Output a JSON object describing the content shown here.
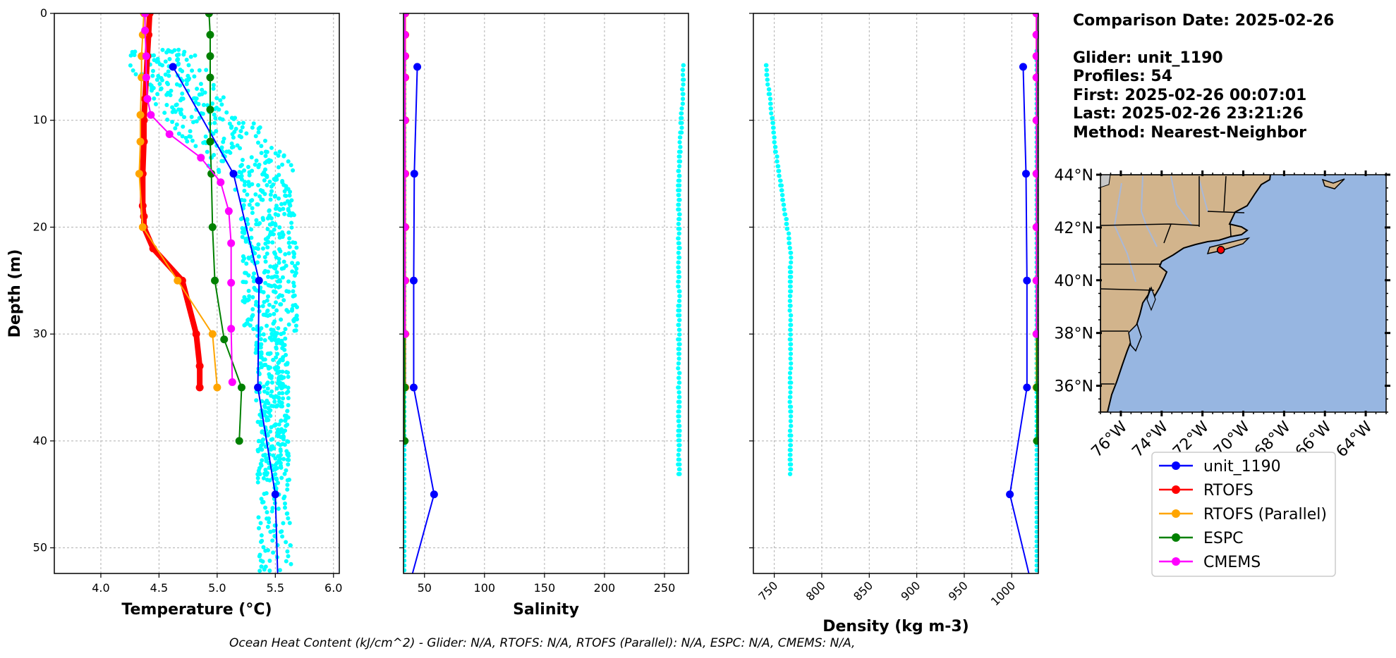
{
  "info": {
    "comparison_date": "Comparison Date: 2025-02-26",
    "glider": "Glider: unit_1190",
    "profiles": "Profiles: 54",
    "first": "First: 2025-02-26 00:07:01",
    "last": "Last: 2025-02-26 23:21:26",
    "method": "Method: Nearest-Neighbor"
  },
  "footer_text": "Ocean Heat Content (kJ/cm^2) - Glider: N/A,  RTOFS: N/A,  RTOFS (Parallel): N/A,  ESPC: N/A,  CMEMS: N/A,",
  "colors": {
    "unit_1190": "#0000ff",
    "RTOFS": "#ff0000",
    "RTOFS (Parallel)": "#ffa500",
    "ESPC": "#008000",
    "CMEMS": "#ff00ff",
    "glider_points": "#00ffff",
    "land": "#d2b48c",
    "ocean": "#97b6e1"
  },
  "legend": [
    "unit_1190",
    "RTOFS",
    "RTOFS (Parallel)",
    "ESPC",
    "CMEMS"
  ],
  "chart_data": [
    {
      "type": "line",
      "xlabel": "Temperature (°C)",
      "ylabel": "Depth (m)",
      "xlim": [
        3.6,
        6.05
      ],
      "ylim": [
        52.4,
        0
      ],
      "xticks": [
        "4.0",
        "4.5",
        "5.0",
        "5.5",
        "6.0"
      ],
      "xtick_values": [
        4.0,
        4.5,
        5.0,
        5.5,
        6.0
      ],
      "yticks": [
        "0",
        "10",
        "20",
        "30",
        "40",
        "50"
      ],
      "ytick_values": [
        0,
        10,
        20,
        30,
        40,
        50
      ],
      "grid": true,
      "series": [
        {
          "name": "unit_1190",
          "x": [
            4.62,
            5.14,
            5.36,
            5.35,
            5.5,
            5.52
          ],
          "y": [
            5,
            15,
            25,
            35,
            45,
            52.4
          ]
        },
        {
          "name": "RTOFS",
          "x": [
            4.42,
            4.41,
            4.4,
            4.39,
            4.38,
            4.37,
            4.37,
            4.36,
            4.36,
            4.37,
            4.37,
            4.45,
            4.7,
            4.82,
            4.85,
            4.85
          ],
          "y": [
            0,
            2,
            4,
            6,
            8,
            10,
            12,
            15,
            18,
            19,
            20,
            22,
            25,
            30,
            33,
            35
          ]
        },
        {
          "name": "RTOFS (Parallel)",
          "x": [
            4.37,
            4.36,
            4.35,
            4.35,
            4.34,
            4.34,
            4.33,
            4.36,
            4.66,
            4.96,
            5.0
          ],
          "y": [
            0,
            2,
            4,
            6,
            9.5,
            12,
            15,
            20,
            25,
            30,
            35
          ]
        },
        {
          "name": "ESPC",
          "x": [
            4.93,
            4.94,
            4.94,
            4.94,
            4.94,
            4.94,
            4.95,
            4.96,
            4.98,
            5.06,
            5.21,
            5.19
          ],
          "y": [
            0,
            2,
            4,
            6,
            9,
            12,
            15,
            20,
            25,
            30.5,
            35,
            40
          ]
        },
        {
          "name": "CMEMS",
          "x": [
            4.38,
            4.38,
            4.39,
            4.39,
            4.4,
            4.43,
            4.59,
            4.86,
            5.03,
            5.1,
            5.12,
            5.12,
            5.12,
            5.13
          ],
          "y": [
            0,
            1.6,
            4,
            6,
            8,
            9.5,
            11.3,
            13.5,
            15.8,
            18.5,
            21.5,
            25.2,
            29.5,
            34.5
          ]
        }
      ]
    },
    {
      "type": "line",
      "xlabel": "Salinity",
      "ylabel": "",
      "xlim": [
        32.5,
        270
      ],
      "ylim": [
        52.4,
        0
      ],
      "xticks": [
        "50",
        "100",
        "150",
        "200",
        "250"
      ],
      "xtick_values": [
        50,
        100,
        150,
        200,
        250
      ],
      "yticks": [
        "",
        "",
        "",
        "",
        "",
        ""
      ],
      "ytick_values": [
        0,
        10,
        20,
        30,
        40,
        50
      ],
      "grid": true,
      "series": [
        {
          "name": "unit_1190",
          "x": [
            44.0,
            41.5,
            41.0,
            41.0,
            58.0,
            40.0
          ],
          "y": [
            5,
            15,
            25,
            35,
            45,
            52.4
          ]
        },
        {
          "name": "RTOFS",
          "x": [
            34,
            34,
            34,
            34,
            34,
            34,
            34,
            34,
            34,
            34
          ],
          "y": [
            0,
            2,
            4,
            6,
            10,
            15,
            20,
            25,
            30,
            35
          ]
        },
        {
          "name": "RTOFS (Parallel)",
          "x": [
            33.8,
            33.8,
            33.8,
            33.8,
            33.8,
            33.8,
            33.8,
            33.8,
            33.8,
            33.8
          ],
          "y": [
            0,
            2,
            4,
            6,
            10,
            15,
            20,
            25,
            30,
            35
          ]
        },
        {
          "name": "ESPC",
          "x": [
            33.5,
            33.5,
            33.5,
            33.5,
            33.5,
            33.5,
            33.5,
            33.5,
            33.5,
            33.5,
            33.5
          ],
          "y": [
            0,
            2,
            4,
            6,
            10,
            15,
            20,
            25,
            30,
            35,
            40
          ]
        },
        {
          "name": "CMEMS",
          "x": [
            33.7,
            33.7,
            33.7,
            33.7,
            33.7,
            33.7,
            33.7,
            33.7,
            33.7
          ],
          "y": [
            0,
            2,
            4,
            6,
            10,
            15,
            20,
            25,
            30
          ]
        }
      ]
    },
    {
      "type": "line",
      "xlabel": "Density (kg m-3)",
      "ylabel": "",
      "xlim": [
        728,
        1028
      ],
      "ylim": [
        52.4,
        0
      ],
      "xticks": [
        "750",
        "800",
        "850",
        "900",
        "950",
        "1000"
      ],
      "xtick_values": [
        750,
        800,
        850,
        900,
        950,
        1000
      ],
      "yticks": [
        "",
        "",
        "",
        "",
        "",
        ""
      ],
      "ytick_values": [
        0,
        10,
        20,
        30,
        40,
        50
      ],
      "grid": true,
      "series": [
        {
          "name": "unit_1190",
          "x": [
            1012,
            1015,
            1016,
            1016,
            998,
            1018
          ],
          "y": [
            5,
            15,
            25,
            35,
            45,
            52.4
          ]
        },
        {
          "name": "RTOFS",
          "x": [
            1026,
            1026,
            1026,
            1026,
            1026,
            1026,
            1026,
            1026,
            1026,
            1026
          ],
          "y": [
            0,
            2,
            4,
            6,
            10,
            15,
            20,
            25,
            30,
            35
          ]
        },
        {
          "name": "RTOFS (Parallel)",
          "x": [
            1026,
            1026,
            1026,
            1026,
            1026,
            1026,
            1026,
            1026,
            1026,
            1026
          ],
          "y": [
            0,
            2,
            4,
            6,
            10,
            15,
            20,
            25,
            30,
            35
          ]
        },
        {
          "name": "ESPC",
          "x": [
            1026.5,
            1026.5,
            1026.5,
            1026.5,
            1026.5,
            1026.5,
            1026.5,
            1026.5,
            1026.5,
            1026.5,
            1026.5
          ],
          "y": [
            0,
            2,
            4,
            6,
            10,
            15,
            20,
            25,
            30,
            35,
            40
          ]
        },
        {
          "name": "CMEMS",
          "x": [
            1026,
            1026,
            1026,
            1026,
            1026,
            1026,
            1026,
            1026,
            1026
          ],
          "y": [
            0,
            2,
            4,
            6,
            10,
            15,
            20,
            25,
            30
          ]
        }
      ]
    }
  ],
  "map": {
    "lat_ticks": [
      "44°N",
      "42°N",
      "40°N",
      "38°N",
      "36°N"
    ],
    "lat_values": [
      44,
      42,
      40,
      38,
      36
    ],
    "lon_ticks": [
      "76°W",
      "74°W",
      "72°W",
      "70°W",
      "68°W",
      "66°W",
      "64°W"
    ],
    "lon_values": [
      -76,
      -74,
      -72,
      -70,
      -68,
      -66,
      -64
    ],
    "lon_range": [
      -77,
      -63
    ],
    "lat_range": [
      35,
      44
    ],
    "glider_location": {
      "lon": -71.1,
      "lat": 41.15
    }
  }
}
